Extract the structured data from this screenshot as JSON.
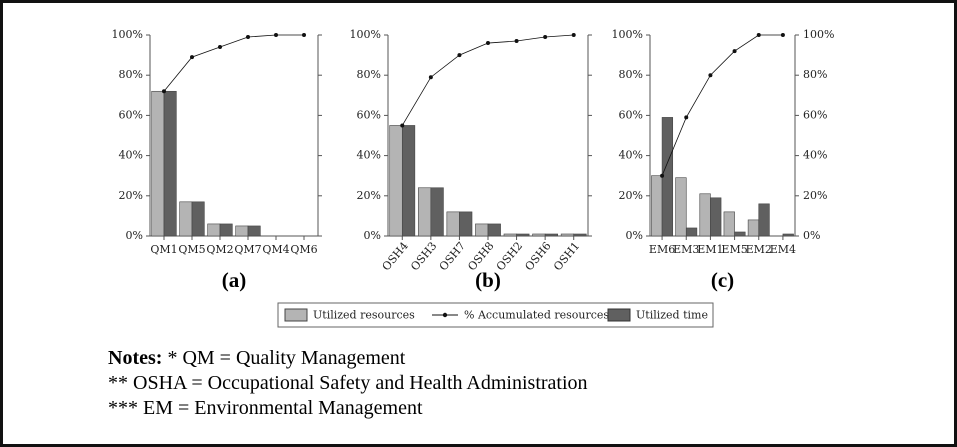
{
  "chart_data": [
    {
      "type": "bar",
      "subtitle": "(a)",
      "categories": [
        "QM1",
        "QM5",
        "QM2",
        "QM7",
        "QM4",
        "QM6"
      ],
      "series": [
        {
          "values": [
            72,
            17,
            6,
            5,
            0,
            0
          ]
        },
        {
          "values": [
            72,
            89,
            94,
            99,
            100,
            100
          ],
          "axis": "y2"
        },
        {
          "values": [
            72,
            17,
            6,
            5,
            0,
            0
          ]
        }
      ],
      "ylim": [
        0,
        100
      ],
      "yticks": [
        {
          "value": 0,
          "label": "0%"
        },
        {
          "value": 20,
          "label": "20%"
        },
        {
          "value": 40,
          "label": "40%"
        },
        {
          "value": 60,
          "label": "60%"
        },
        {
          "value": 80,
          "label": "80%"
        },
        {
          "value": 100,
          "label": "100%"
        }
      ],
      "y2lim": [
        0,
        100
      ],
      "y2ticks": [
        0,
        20,
        40,
        60,
        80,
        100
      ]
    },
    {
      "type": "bar",
      "subtitle": "(b)",
      "categories": [
        "OSH4",
        "OSH3",
        "OSH7",
        "OSH8",
        "OSH2",
        "OSH6",
        "OSH1"
      ],
      "series": [
        {
          "values": [
            55,
            24,
            12,
            6,
            1,
            1,
            1
          ]
        },
        {
          "values": [
            55,
            79,
            90,
            96,
            97,
            99,
            100
          ],
          "axis": "y2"
        },
        {
          "values": [
            55,
            24,
            12,
            6,
            1,
            1,
            1
          ]
        }
      ],
      "ylim": [
        0,
        100
      ],
      "yticks": [
        {
          "value": 0,
          "label": "0%"
        },
        {
          "value": 20,
          "label": "20%"
        },
        {
          "value": 40,
          "label": "40%"
        },
        {
          "value": 60,
          "label": "60%"
        },
        {
          "value": 80,
          "label": "80%"
        },
        {
          "value": 100,
          "label": "100%"
        }
      ],
      "y2lim": [
        0,
        100
      ],
      "y2ticks": [
        0,
        20,
        40,
        60,
        80,
        100
      ]
    },
    {
      "type": "bar",
      "subtitle": "(c)",
      "categories": [
        "EM6",
        "EM3",
        "EM1",
        "EM5",
        "EM2",
        "EM4"
      ],
      "series": [
        {
          "values": [
            30,
            29,
            21,
            12,
            8,
            0
          ]
        },
        {
          "values": [
            30,
            59,
            80,
            92,
            100,
            100
          ],
          "axis": "y2"
        },
        {
          "values": [
            59,
            4,
            19,
            2,
            16,
            1
          ]
        }
      ],
      "ylim": [
        0,
        100
      ],
      "yticks": [
        {
          "value": 0,
          "label": "0%"
        },
        {
          "value": 20,
          "label": "20%"
        },
        {
          "value": 40,
          "label": "40%"
        },
        {
          "value": 60,
          "label": "60%"
        },
        {
          "value": 80,
          "label": "80%"
        },
        {
          "value": 100,
          "label": "100%"
        }
      ],
      "y2lim": [
        0,
        100
      ],
      "y2ticks": [
        {
          "value": 0,
          "label": "0%"
        },
        {
          "value": 20,
          "label": "20%"
        },
        {
          "value": 40,
          "label": "40%"
        },
        {
          "value": 60,
          "label": "60%"
        },
        {
          "value": 80,
          "label": "80%"
        },
        {
          "value": 100,
          "label": "100%"
        }
      ]
    }
  ],
  "legend": [
    {
      "name": "Utilized resources",
      "color": "#b4b4b4"
    },
    {
      "name": "% Accumulated resources",
      "color": "#111111"
    },
    {
      "name": "Utilized time",
      "color": "#606060"
    }
  ],
  "notes": {
    "label": "Notes:",
    "lines": [
      "* QM = Quality Management",
      "** OSHA = Occupational Safety and Health Administration",
      "*** EM = Environmental Management"
    ]
  }
}
